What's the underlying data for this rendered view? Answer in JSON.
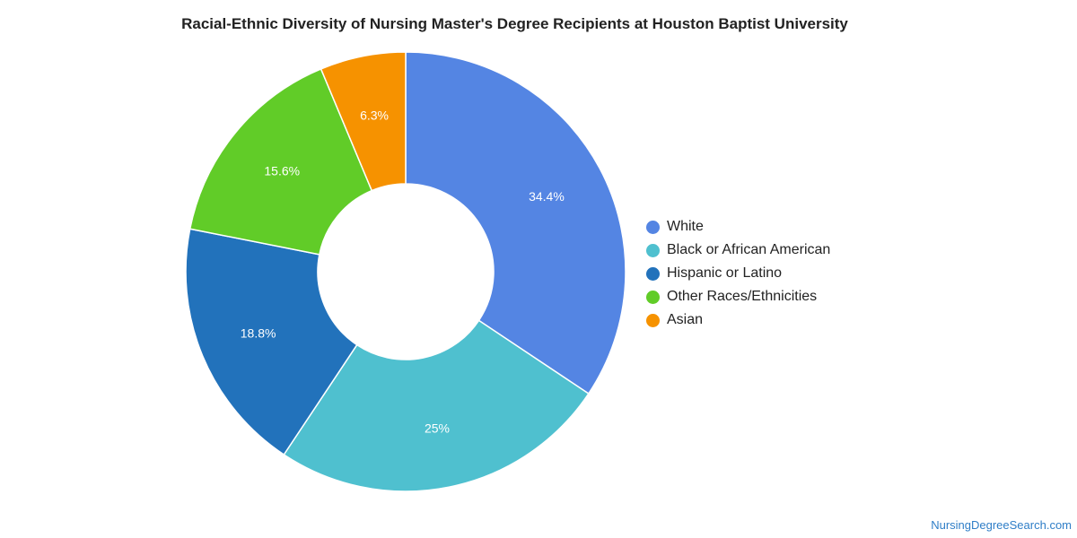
{
  "chart_data": {
    "type": "pie",
    "variant": "donut",
    "title": "Racial-Ethnic Diversity of Nursing Master's Degree Recipients at Houston Baptist University",
    "categories": [
      "White",
      "Black or African American",
      "Hispanic or Latino",
      "Other Races/Ethnicities",
      "Asian"
    ],
    "values": [
      34.4,
      25,
      18.8,
      15.6,
      6.3
    ],
    "value_labels": [
      "34.4%",
      "25%",
      "18.8%",
      "15.6%",
      "6.3%"
    ],
    "colors": [
      "#5485e3",
      "#4fc0cf",
      "#2272bb",
      "#61cc28",
      "#f69200"
    ],
    "legend_position": "right"
  },
  "attribution": "NursingDegreeSearch.com"
}
